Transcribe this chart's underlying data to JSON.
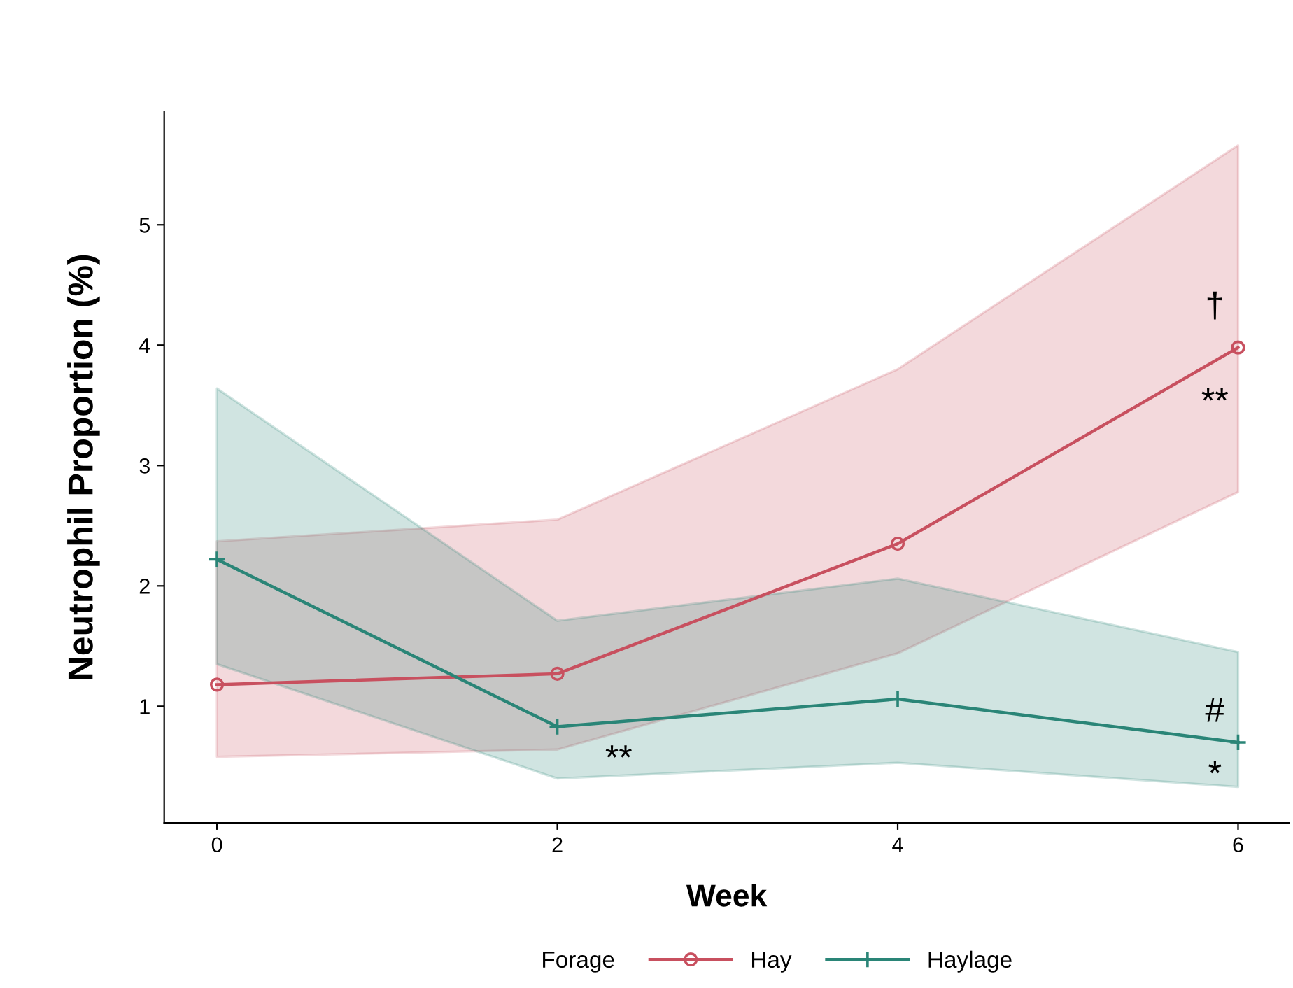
{
  "chart_data": {
    "type": "line",
    "xlabel": "Week",
    "ylabel": "Neutrophil Proportion (%)",
    "legend_title": "Forage",
    "legend": "bottom",
    "grid": false,
    "x": [
      0,
      2,
      4,
      6
    ],
    "xlim": [
      -0.31,
      6.3
    ],
    "xticks": [
      0,
      2,
      4,
      6
    ],
    "ylim": [
      0.03,
      5.94
    ],
    "yticks": [
      1,
      2,
      3,
      4,
      5
    ],
    "series": [
      {
        "name": "Hay",
        "color": "#c8505f",
        "marker": "circle",
        "values": [
          1.18,
          1.27,
          2.35,
          3.98
        ],
        "lower": [
          0.58,
          0.64,
          1.44,
          2.78
        ],
        "upper": [
          2.37,
          2.55,
          3.8,
          5.66
        ]
      },
      {
        "name": "Haylage",
        "color": "#2a8577",
        "marker": "cross",
        "values": [
          2.22,
          0.83,
          1.06,
          0.7
        ],
        "lower": [
          1.35,
          0.4,
          0.53,
          0.33
        ],
        "upper": [
          3.64,
          1.71,
          2.06,
          1.45
        ]
      }
    ],
    "annotations": [
      "†",
      "**",
      "**",
      "#",
      "*"
    ]
  }
}
